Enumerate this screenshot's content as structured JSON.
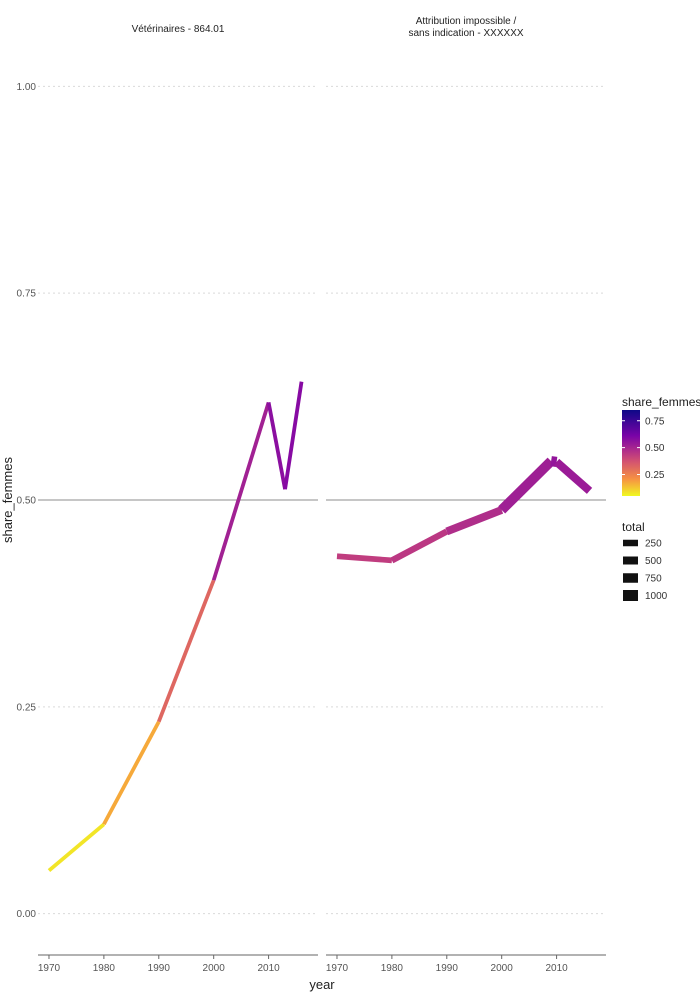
{
  "chart_data": {
    "type": "line",
    "xlabel": "year",
    "ylabel": "share_femmes",
    "ylim": [
      -0.05,
      1.05
    ],
    "xlim": [
      1968,
      2019
    ],
    "y_ticks": [
      "0.00",
      "0.25",
      "0.50",
      "0.75",
      "1.00"
    ],
    "y_tick_values": [
      0,
      0.25,
      0.5,
      0.75,
      1.0
    ],
    "x_ticks": [
      "1970",
      "1980",
      "1990",
      "2000",
      "2010"
    ],
    "x_tick_values": [
      1970,
      1980,
      1990,
      2000,
      2010
    ],
    "reference_line": 0.5,
    "panels": [
      {
        "title_lines": [
          "Vétérinaires - 864.01"
        ],
        "points": [
          {
            "year": 1970,
            "share_femmes": 0.052,
            "total": 150
          },
          {
            "year": 1980,
            "share_femmes": 0.108,
            "total": 150
          },
          {
            "year": 1990,
            "share_femmes": 0.232,
            "total": 150
          },
          {
            "year": 2000,
            "share_femmes": 0.403,
            "total": 150
          },
          {
            "year": 2010,
            "share_femmes": 0.618,
            "total": 150
          },
          {
            "year": 2013,
            "share_femmes": 0.513,
            "total": 150
          },
          {
            "year": 2016,
            "share_femmes": 0.643,
            "total": 150
          }
        ]
      },
      {
        "title_lines": [
          "Attribution impossible /",
          "sans indication - XXXXXX"
        ],
        "points": [
          {
            "year": 1970,
            "share_femmes": 0.432,
            "total": 400
          },
          {
            "year": 1980,
            "share_femmes": 0.427,
            "total": 350
          },
          {
            "year": 1990,
            "share_femmes": 0.462,
            "total": 550
          },
          {
            "year": 2000,
            "share_femmes": 0.488,
            "total": 700
          },
          {
            "year": 2009,
            "share_femmes": 0.547,
            "total": 1050
          },
          {
            "year": 2010,
            "share_femmes": 0.546,
            "total": 750
          },
          {
            "year": 2016,
            "share_femmes": 0.511,
            "total": 550
          }
        ]
      }
    ],
    "legend": {
      "color_title": "share_femmes",
      "color_ticks": [
        "0.75",
        "0.50",
        "0.25"
      ],
      "color_tick_values": [
        0.75,
        0.5,
        0.25
      ],
      "color_range": [
        0.05,
        0.85
      ],
      "size_title": "total",
      "size_labels": [
        "250",
        "500",
        "750",
        "1000"
      ],
      "size_values": [
        250,
        500,
        750,
        1000
      ]
    }
  }
}
